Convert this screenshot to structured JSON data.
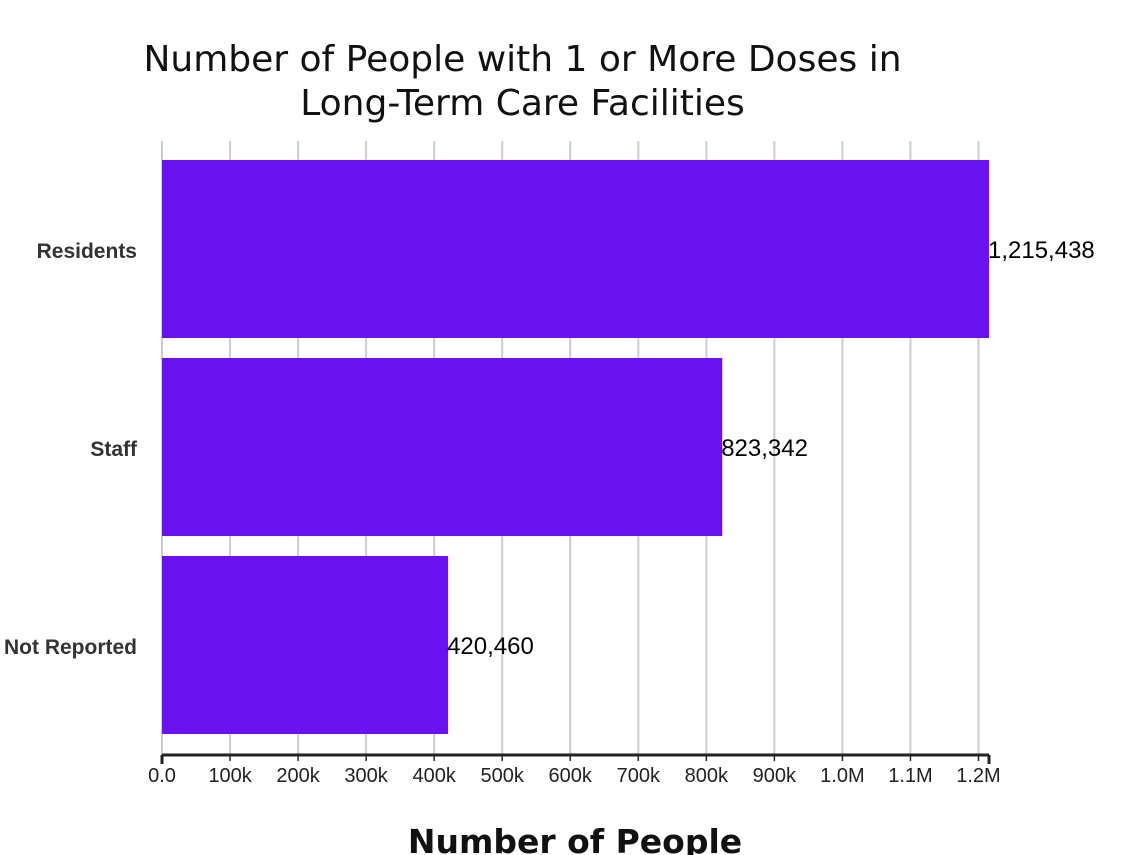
{
  "chart_data": {
    "type": "bar",
    "orientation": "horizontal",
    "title": [
      "Number of People with 1 or More Doses in",
      "Long-Term Care Facilities"
    ],
    "xlabel": "Number of People",
    "ylabel": "",
    "categories": [
      "Residents",
      "Staff",
      "Not Reported"
    ],
    "values": [
      1215438,
      823342,
      420460
    ],
    "value_labels": [
      "1,215,438",
      "823,342",
      "420,460"
    ],
    "xlim": [
      0,
      1215438
    ],
    "x_ticks": [
      0,
      100000,
      200000,
      300000,
      400000,
      500000,
      600000,
      700000,
      800000,
      900000,
      1000000,
      1100000,
      1200000
    ],
    "x_tick_labels": [
      "0.0",
      "100k",
      "200k",
      "300k",
      "400k",
      "500k",
      "600k",
      "700k",
      "800k",
      "900k",
      "1.0M",
      "1.1M",
      "1.2M"
    ],
    "grid": true,
    "legend": "none",
    "bar_color": "#6a11f0",
    "grid_color": "#cccccc",
    "axis_color": "#222222"
  }
}
